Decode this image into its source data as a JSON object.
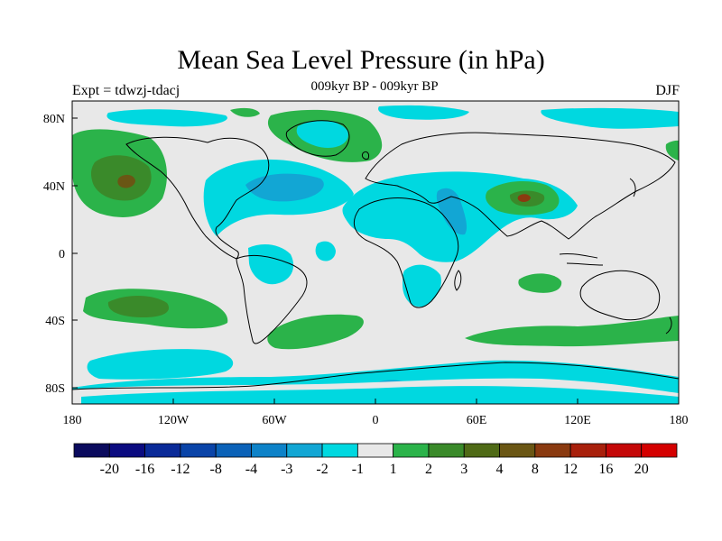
{
  "title": "Mean Sea Level Pressure (in hPa)",
  "subtitle": "009kyr BP - 009kyr BP",
  "left_label": "Expt = tdwzj-tdacj",
  "right_label": "DJF",
  "lat_ticks": [
    "80N",
    "40N",
    "0",
    "40S",
    "80S"
  ],
  "lon_ticks": [
    "180",
    "120W",
    "60W",
    "0",
    "60E",
    "120E",
    "180"
  ],
  "colorbar": {
    "labels": [
      "-20",
      "-16",
      "-12",
      "-8",
      "-4",
      "-3",
      "-2",
      "-1",
      "1",
      "2",
      "3",
      "4",
      "8",
      "12",
      "16",
      "20"
    ],
    "colors": [
      "#0b0b5e",
      "#0b0b80",
      "#0a2a98",
      "#0a44a8",
      "#0b62b8",
      "#0d82c8",
      "#12a6d4",
      "#00d8e0",
      "#e8e8e8",
      "#2bb34a",
      "#3a8a2a",
      "#4f6a16",
      "#6a5614",
      "#8a3a10",
      "#a8200c",
      "#c40808",
      "#d40000"
    ]
  },
  "colors": {
    "land_background": "#e8e8e8",
    "negative_weak": "#00d8e0",
    "negative_mid": "#12a6d4",
    "positive_weak": "#2bb34a",
    "positive_mid": "#3a8a2a",
    "positive_strong": "#6a5614"
  }
}
